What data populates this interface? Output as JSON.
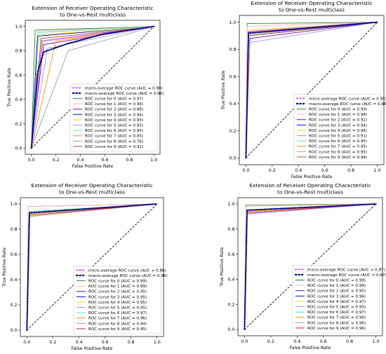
{
  "chart_data": [
    {
      "type": "line",
      "title_lines": [
        "Extension of Receiver Operating Characteristic",
        "to One-vs-Rest multiclass"
      ],
      "xlabel": "False Positive Rate",
      "ylabel": "True Positive Rate",
      "xlim": [
        -0.05,
        1.05
      ],
      "ylim": [
        -0.05,
        1.05
      ],
      "xticks": [
        "0.0",
        "0.2",
        "0.4",
        "0.6",
        "0.8",
        "1.0"
      ],
      "yticks": [
        "0.0",
        "0.2",
        "0.4",
        "0.6",
        "0.8",
        "1.0"
      ],
      "legend_position": "lower-right",
      "series": [
        {
          "name": "micro-average ROC curve (AUC = 0.90)",
          "color": "#d670d6",
          "style": "dotted",
          "points": [
            [
              0,
              0
            ],
            [
              0.09,
              0.88
            ],
            [
              1,
              1
            ]
          ]
        },
        {
          "name": "macro-average ROC curve (AUC = 0.90)",
          "color": "#000080",
          "style": "dotted",
          "points": [
            [
              0,
              0
            ],
            [
              0.05,
              0.62
            ],
            [
              0.1,
              0.79
            ],
            [
              0.3,
              0.86
            ],
            [
              0.6,
              0.94
            ],
            [
              1,
              1
            ]
          ]
        },
        {
          "name": "ROC curve for 0 (AUC = 0.97)",
          "color": "#2e8b2e",
          "style": "solid",
          "points": [
            [
              0,
              0
            ],
            [
              0.03,
              0.97
            ],
            [
              1,
              1
            ]
          ]
        },
        {
          "name": "ROC curve for 1 (AUC = 0.96)",
          "color": "#ffb6c1",
          "style": "solid",
          "points": [
            [
              0,
              0
            ],
            [
              0.05,
              0.96
            ],
            [
              1,
              1
            ]
          ]
        },
        {
          "name": "ROC curve for 2 (AUC = 0.88)",
          "color": "#6a0dad",
          "style": "solid",
          "points": [
            [
              0,
              0
            ],
            [
              0.1,
              0.85
            ],
            [
              1,
              1
            ]
          ]
        },
        {
          "name": "ROC curve for 3 (AUC = 0.94)",
          "color": "#0000cd",
          "style": "solid",
          "points": [
            [
              0,
              0
            ],
            [
              0.05,
              0.92
            ],
            [
              1,
              1
            ]
          ]
        },
        {
          "name": "ROC curve for 4 (AUC = 0.93)",
          "color": "#ffd700",
          "style": "solid",
          "points": [
            [
              0,
              0
            ],
            [
              0.08,
              0.93
            ],
            [
              1,
              1
            ]
          ]
        },
        {
          "name": "ROC curve for 5 (AUC = 0.85)",
          "color": "#9999ff",
          "style": "solid",
          "points": [
            [
              0,
              0
            ],
            [
              0.13,
              0.82
            ],
            [
              1,
              1
            ]
          ]
        },
        {
          "name": "ROC curve for 6 (AUC = 0.95)",
          "color": "#40e0d0",
          "style": "solid",
          "points": [
            [
              0,
              0
            ],
            [
              0.06,
              0.95
            ],
            [
              1,
              1
            ]
          ]
        },
        {
          "name": "ROC curve for 7 (AUC = 0.85)",
          "color": "#ff8c00",
          "style": "solid",
          "points": [
            [
              0,
              0
            ],
            [
              0.2,
              0.88
            ],
            [
              1,
              1
            ]
          ]
        },
        {
          "name": "ROC curve for 8 (AUC = 0.76)",
          "color": "#a0a0a0",
          "style": "solid",
          "points": [
            [
              0,
              0
            ],
            [
              0.3,
              0.8
            ],
            [
              1,
              1
            ]
          ]
        },
        {
          "name": "ROC curve for 9 (AUC = 0.92)",
          "color": "#a0522d",
          "style": "solid",
          "points": [
            [
              0,
              0
            ],
            [
              0.08,
              0.9
            ],
            [
              1,
              1
            ]
          ]
        }
      ]
    },
    {
      "type": "line",
      "title_lines": [
        "Extension of Receiver Operating Characteristic",
        "to One-vs-Rest multiclass"
      ],
      "xlabel": "False Positive Rate",
      "ylabel": "True Positive Rate",
      "xlim": [
        -0.05,
        1.05
      ],
      "ylim": [
        -0.05,
        1.05
      ],
      "xticks": [
        "0.0",
        "0.2",
        "0.4",
        "0.6",
        "0.8",
        "1.0"
      ],
      "yticks": [
        "0.0",
        "0.2",
        "0.4",
        "0.6",
        "0.8",
        "1.0"
      ],
      "legend_position": "lower-right",
      "series": [
        {
          "name": "micro-average ROC curve (AUC = 0.95)",
          "color": "#d670d6",
          "style": "dotted",
          "points": [
            [
              0,
              0
            ],
            [
              0.02,
              0.93
            ],
            [
              1,
              1
            ]
          ]
        },
        {
          "name": "macro-average ROC curve (AUC = 0.95)",
          "color": "#000080",
          "style": "dotted",
          "points": [
            [
              0,
              0
            ],
            [
              0.02,
              0.92
            ],
            [
              1,
              1
            ]
          ]
        },
        {
          "name": "ROC curve for 0 (AUC = 0.99)",
          "color": "#2e8b2e",
          "style": "solid",
          "points": [
            [
              0,
              0
            ],
            [
              0.01,
              0.99
            ],
            [
              1,
              1
            ]
          ]
        },
        {
          "name": "ROC curve for 1 (AUC = 0.98)",
          "color": "#ffb6c1",
          "style": "solid",
          "points": [
            [
              0,
              0
            ],
            [
              0.01,
              0.97
            ],
            [
              1,
              1
            ]
          ]
        },
        {
          "name": "ROC curve for 2 (AUC = 0.92)",
          "color": "#6a0dad",
          "style": "solid",
          "points": [
            [
              0,
              0
            ],
            [
              0.03,
              0.88
            ],
            [
              1,
              1
            ]
          ]
        },
        {
          "name": "ROC curve for 3 (AUC = 0.94)",
          "color": "#0000cd",
          "style": "solid",
          "points": [
            [
              0,
              0
            ],
            [
              0.02,
              0.9
            ],
            [
              1,
              1
            ]
          ]
        },
        {
          "name": "ROC curve for 4 (AUC = 0.96)",
          "color": "#ffd700",
          "style": "solid",
          "points": [
            [
              0,
              0
            ],
            [
              0.02,
              0.94
            ],
            [
              1,
              1
            ]
          ]
        },
        {
          "name": "ROC curve for 5 (AUC = 0.91)",
          "color": "#9999ff",
          "style": "solid",
          "points": [
            [
              0,
              0
            ],
            [
              0.03,
              0.85
            ],
            [
              1,
              1
            ]
          ]
        },
        {
          "name": "ROC curve for 6 (AUC = 0.95)",
          "color": "#40e0d0",
          "style": "solid",
          "points": [
            [
              0,
              0
            ],
            [
              0.02,
              0.92
            ],
            [
              1,
              1
            ]
          ]
        },
        {
          "name": "ROC curve for 7 (AUC = 0.95)",
          "color": "#ff8c00",
          "style": "solid",
          "points": [
            [
              0,
              0
            ],
            [
              0.02,
              0.92
            ],
            [
              1,
              1
            ]
          ]
        },
        {
          "name": "ROC curve for 8 (AUC = 0.95)",
          "color": "#a0a0a0",
          "style": "solid",
          "points": [
            [
              0,
              0
            ],
            [
              0.02,
              0.91
            ],
            [
              1,
              1
            ]
          ]
        },
        {
          "name": "ROC curve for 9 (AUC = 0.94)",
          "color": "#a0522d",
          "style": "solid",
          "points": [
            [
              0,
              0
            ],
            [
              0.02,
              0.9
            ],
            [
              1,
              1
            ]
          ]
        }
      ]
    },
    {
      "type": "line",
      "title_lines": [
        "Extension of Receiver Operating Characteristic",
        "to One-vs-Rest multiclass"
      ],
      "xlabel": "False Positive Rate",
      "ylabel": "True Positive Rate",
      "xlim": [
        -0.05,
        1.05
      ],
      "ylim": [
        -0.05,
        1.05
      ],
      "xticks": [
        "0.0",
        "0.2",
        "0.4",
        "0.6",
        "0.8",
        "1.0"
      ],
      "yticks": [
        "0.0",
        "0.2",
        "0.4",
        "0.6",
        "0.8",
        "1.0"
      ],
      "legend_position": "lower-right",
      "series": [
        {
          "name": "micro-average ROC curve (AUC = 0.96)",
          "color": "#d670d6",
          "style": "dotted",
          "points": [
            [
              0,
              0
            ],
            [
              0.02,
              0.93
            ],
            [
              1,
              1
            ]
          ]
        },
        {
          "name": "macro-average ROC curve (AUC = 0.96)",
          "color": "#000080",
          "style": "dotted",
          "points": [
            [
              0,
              0
            ],
            [
              0.02,
              0.93
            ],
            [
              1,
              1
            ]
          ]
        },
        {
          "name": "ROC curve for 0 (AUC = 0.99)",
          "color": "#2e8b2e",
          "style": "solid",
          "points": [
            [
              0,
              0
            ],
            [
              0.01,
              0.98
            ],
            [
              1,
              1
            ]
          ]
        },
        {
          "name": "ROC curve for 1 (AUC = 0.99)",
          "color": "#ffb6c1",
          "style": "solid",
          "points": [
            [
              0,
              0
            ],
            [
              0.01,
              0.98
            ],
            [
              1,
              1
            ]
          ]
        },
        {
          "name": "ROC curve for 2 (AUC = 0.95)",
          "color": "#6a0dad",
          "style": "solid",
          "points": [
            [
              0,
              0
            ],
            [
              0.02,
              0.92
            ],
            [
              1,
              1
            ]
          ]
        },
        {
          "name": "ROC curve for 3 (AUC = 0.95)",
          "color": "#0000cd",
          "style": "solid",
          "points": [
            [
              0,
              0
            ],
            [
              0.02,
              0.92
            ],
            [
              1,
              1
            ]
          ]
        },
        {
          "name": "ROC curve for 4 (AUC = 0.95)",
          "color": "#ffd700",
          "style": "solid",
          "points": [
            [
              0,
              0
            ],
            [
              0.02,
              0.92
            ],
            [
              1,
              1
            ]
          ]
        },
        {
          "name": "ROC curve for 5 (AUC = 0.95)",
          "color": "#9999ff",
          "style": "solid",
          "points": [
            [
              0,
              0
            ],
            [
              0.02,
              0.91
            ],
            [
              1,
              1
            ]
          ]
        },
        {
          "name": "ROC curve for 6 (AUC = 0.97)",
          "color": "#40e0d0",
          "style": "solid",
          "points": [
            [
              0,
              0
            ],
            [
              0.02,
              0.94
            ],
            [
              1,
              1
            ]
          ]
        },
        {
          "name": "ROC curve for 7 (AUC = 0.96)",
          "color": "#ff8c00",
          "style": "solid",
          "points": [
            [
              0,
              0
            ],
            [
              0.02,
              0.93
            ],
            [
              1,
              1
            ]
          ]
        },
        {
          "name": "ROC curve for 8 (AUC = 0.94)",
          "color": "#a0a0a0",
          "style": "solid",
          "points": [
            [
              0,
              0
            ],
            [
              0.02,
              0.9
            ],
            [
              1,
              1
            ]
          ]
        },
        {
          "name": "ROC curve for 9 (AUC = 0.95)",
          "color": "#d62728",
          "style": "solid",
          "points": [
            [
              0,
              0
            ],
            [
              0.02,
              0.91
            ],
            [
              1,
              1
            ]
          ]
        }
      ]
    },
    {
      "type": "line",
      "title_lines": [
        "Extension of Receiver Operating Characteristic",
        "to One-vs-Rest multiclass"
      ],
      "xlabel": "False Positive Rate",
      "ylabel": "True Positive Rate",
      "xlim": [
        -0.05,
        1.05
      ],
      "ylim": [
        -0.05,
        1.05
      ],
      "xticks": [
        "0.0",
        "0.2",
        "0.4",
        "0.6",
        "0.8",
        "1.0"
      ],
      "yticks": [
        "0.0",
        "0.2",
        "0.4",
        "0.6",
        "0.8",
        "1.0"
      ],
      "legend_position": "lower-right",
      "series": [
        {
          "name": "micro-average ROC curve (AUC = 0.97)",
          "color": "#d670d6",
          "style": "dotted",
          "points": [
            [
              0,
              0
            ],
            [
              0.02,
              0.95
            ],
            [
              1,
              1
            ]
          ]
        },
        {
          "name": "macro-average ROC curve (AUC = 0.97)",
          "color": "#000080",
          "style": "dotted",
          "points": [
            [
              0,
              0
            ],
            [
              0.02,
              0.95
            ],
            [
              1,
              1
            ]
          ]
        },
        {
          "name": "ROC curve for 0 (AUC = 0.99)",
          "color": "#2e8b2e",
          "style": "solid",
          "points": [
            [
              0,
              0
            ],
            [
              0.01,
              0.99
            ],
            [
              1,
              1
            ]
          ]
        },
        {
          "name": "ROC curve for 1 (AUC = 0.99)",
          "color": "#ffb6c1",
          "style": "solid",
          "points": [
            [
              0,
              0
            ],
            [
              0.01,
              0.98
            ],
            [
              1,
              1
            ]
          ]
        },
        {
          "name": "ROC curve for 2 (AUC = 0.95)",
          "color": "#6a0dad",
          "style": "solid",
          "points": [
            [
              0,
              0
            ],
            [
              0.02,
              0.92
            ],
            [
              1,
              1
            ]
          ]
        },
        {
          "name": "ROC curve for 3 (AUC = 0.96)",
          "color": "#0000cd",
          "style": "solid",
          "points": [
            [
              0,
              0
            ],
            [
              0.02,
              0.93
            ],
            [
              1,
              1
            ]
          ]
        },
        {
          "name": "ROC curve for 4 (AUC = 0.97)",
          "color": "#ffd700",
          "style": "solid",
          "points": [
            [
              0,
              0
            ],
            [
              0.02,
              0.95
            ],
            [
              1,
              1
            ]
          ]
        },
        {
          "name": "ROC curve for 5 (AUC = 0.95)",
          "color": "#9999ff",
          "style": "solid",
          "points": [
            [
              0,
              0
            ],
            [
              0.02,
              0.92
            ],
            [
              1,
              1
            ]
          ]
        },
        {
          "name": "ROC curve for 6 (AUC = 0.97)",
          "color": "#40e0d0",
          "style": "solid",
          "points": [
            [
              0,
              0
            ],
            [
              0.02,
              0.95
            ],
            [
              1,
              1
            ]
          ]
        },
        {
          "name": "ROC curve for 7 (AUC = 0.96)",
          "color": "#ff8c00",
          "style": "solid",
          "points": [
            [
              0,
              0
            ],
            [
              0.02,
              0.94
            ],
            [
              1,
              1
            ]
          ]
        },
        {
          "name": "ROC curve for 8 (AUC = 0.96)",
          "color": "#a0a0a0",
          "style": "solid",
          "points": [
            [
              0,
              0
            ],
            [
              0.02,
              0.93
            ],
            [
              1,
              1
            ]
          ]
        },
        {
          "name": "ROC curve for 9 (AUC = 0.96)",
          "color": "#d62728",
          "style": "solid",
          "points": [
            [
              0,
              0
            ],
            [
              0.02,
              0.93
            ],
            [
              1,
              1
            ]
          ]
        }
      ]
    }
  ]
}
